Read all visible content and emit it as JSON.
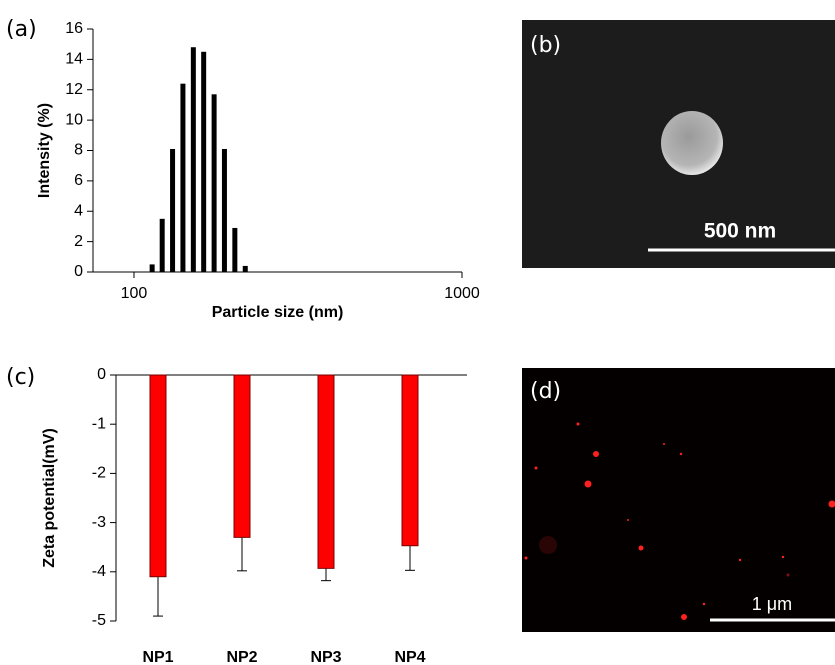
{
  "chart_data": [
    {
      "type": "bar",
      "panel_label": "(a)",
      "xlabel": "Particle size (nm)",
      "ylabel": "Intensity (%)",
      "x": [
        113.6,
        121.9,
        131.1,
        141.0,
        151.7,
        163.1,
        175.5,
        188.7,
        203.0,
        218.4
      ],
      "values": [
        0.5,
        3.5,
        8.1,
        12.4,
        14.8,
        14.5,
        11.7,
        8.1,
        2.9,
        0.4
      ],
      "color": "#000000",
      "xscale": "log",
      "xlim": [
        75,
        1000
      ],
      "xticks": [
        100,
        1000
      ],
      "ylim": [
        0,
        16
      ],
      "yticks": [
        0,
        2,
        4,
        6,
        8,
        10,
        12,
        14,
        16
      ]
    },
    {
      "type": "bar",
      "panel_label": "(c)",
      "ylabel": "Zeta potential(mV)",
      "categories": [
        "NP1",
        "NP2",
        "NP3",
        "NP4"
      ],
      "values": [
        -4.1,
        -3.3,
        -3.93,
        -3.47
      ],
      "errors": [
        0.8,
        0.68,
        0.25,
        0.5
      ],
      "color": "#ff0000",
      "ylim": [
        -5,
        0
      ],
      "yticks": [
        0,
        -1,
        -2,
        -3,
        -4,
        -5
      ]
    }
  ],
  "images": [
    {
      "label": "(b)",
      "scale_label": "500 nm"
    },
    {
      "label": "(d)",
      "scale_label": "1 μm"
    }
  ]
}
